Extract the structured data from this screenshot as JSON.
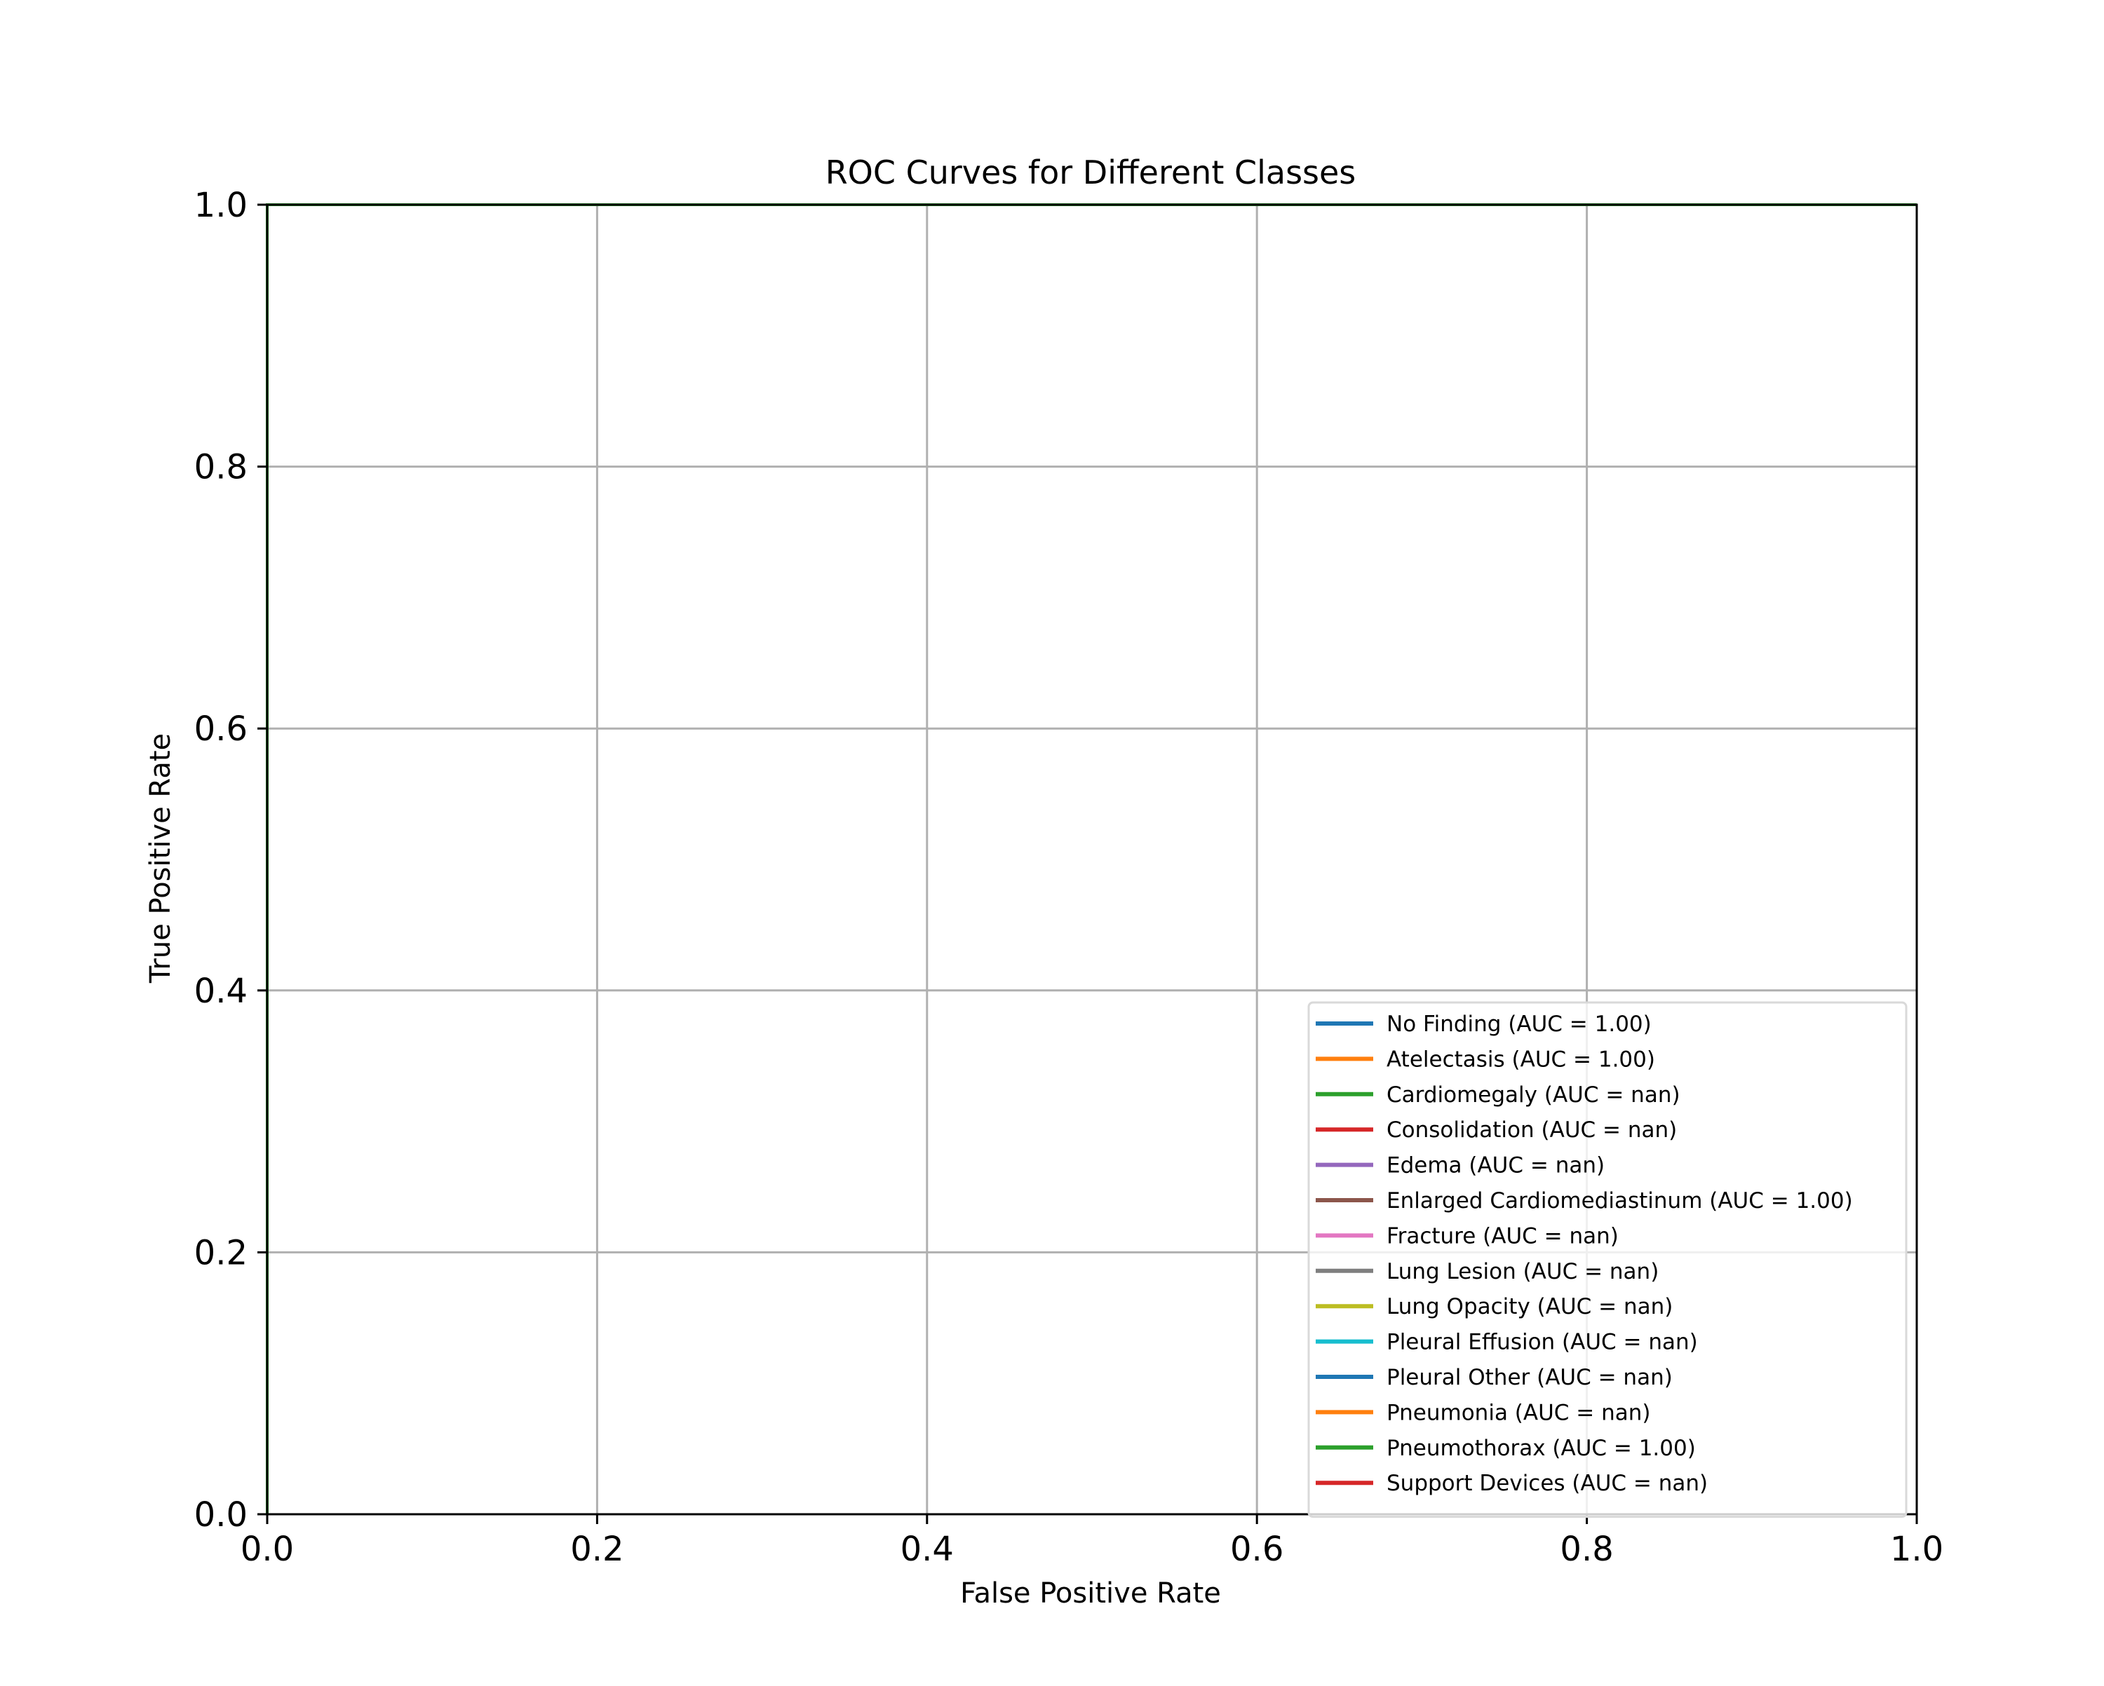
{
  "chart_data": {
    "type": "line",
    "title": "ROC Curves for Different Classes",
    "xlabel": "False Positive Rate",
    "ylabel": "True Positive Rate",
    "xlim": [
      0.0,
      1.0
    ],
    "ylim": [
      0.0,
      1.0
    ],
    "x_ticks": [
      "0.0",
      "0.2",
      "0.4",
      "0.6",
      "0.8",
      "1.0"
    ],
    "y_ticks": [
      "0.0",
      "0.2",
      "0.4",
      "0.6",
      "0.8",
      "1.0"
    ],
    "grid": true,
    "legend_position": "lower right",
    "series": [
      {
        "name": "No Finding (AUC = 1.00)",
        "color": "#1f77b4",
        "x": [
          0.0,
          0.0,
          1.0
        ],
        "y": [
          0.0,
          1.0,
          1.0
        ]
      },
      {
        "name": "Atelectasis (AUC = 1.00)",
        "color": "#ff7f0e",
        "x": [
          0.0,
          0.0,
          1.0
        ],
        "y": [
          0.0,
          1.0,
          1.0
        ]
      },
      {
        "name": "Cardiomegaly (AUC = nan)",
        "color": "#2ca02c",
        "x": [],
        "y": []
      },
      {
        "name": "Consolidation (AUC = nan)",
        "color": "#d62728",
        "x": [],
        "y": []
      },
      {
        "name": "Edema (AUC = nan)",
        "color": "#9467bd",
        "x": [],
        "y": []
      },
      {
        "name": "Enlarged Cardiomediastinum (AUC = 1.00)",
        "color": "#8c564b",
        "x": [
          0.0,
          0.0,
          1.0
        ],
        "y": [
          0.0,
          1.0,
          1.0
        ]
      },
      {
        "name": "Fracture (AUC = nan)",
        "color": "#e377c2",
        "x": [],
        "y": []
      },
      {
        "name": "Lung Lesion (AUC = nan)",
        "color": "#7f7f7f",
        "x": [],
        "y": []
      },
      {
        "name": "Lung Opacity (AUC = nan)",
        "color": "#bcbd22",
        "x": [],
        "y": []
      },
      {
        "name": "Pleural Effusion (AUC = nan)",
        "color": "#17becf",
        "x": [],
        "y": []
      },
      {
        "name": "Pleural Other (AUC = nan)",
        "color": "#1f77b4",
        "x": [],
        "y": []
      },
      {
        "name": "Pneumonia (AUC = nan)",
        "color": "#ff7f0e",
        "x": [],
        "y": []
      },
      {
        "name": "Pneumothorax (AUC = 1.00)",
        "color": "#2ca02c",
        "x": [
          0.0,
          0.0,
          1.0
        ],
        "y": [
          0.0,
          1.0,
          1.0
        ]
      },
      {
        "name": "Support Devices (AUC = nan)",
        "color": "#d62728",
        "x": [],
        "y": []
      }
    ]
  }
}
